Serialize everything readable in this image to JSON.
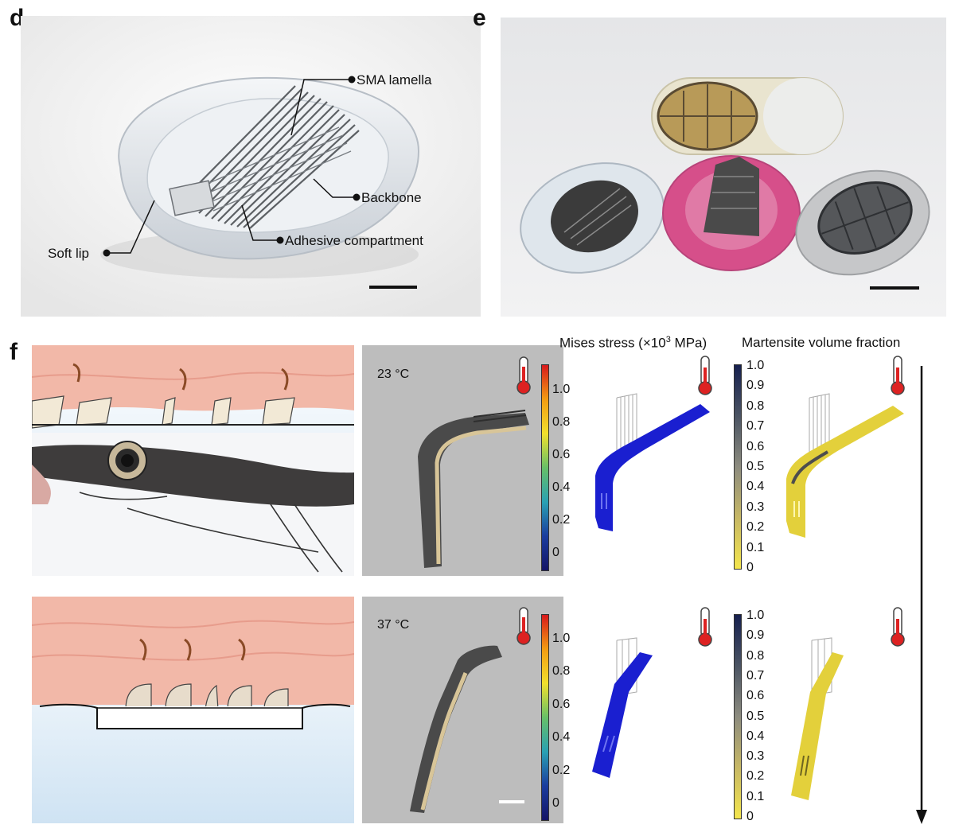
{
  "panels": {
    "d": {
      "letter": "d",
      "labels": {
        "sma_lamella": "SMA lamella",
        "backbone": "Backbone",
        "adhesive_compartment": "Adhesive compartment",
        "soft_lip": "Soft lip"
      }
    },
    "e": {
      "letter": "e"
    },
    "f": {
      "letter": "f",
      "temps": {
        "top": "23 °C",
        "bottom": "37 °C"
      },
      "columns": {
        "mises": "Mises stress (×10",
        "mises_sup": "3",
        "mises_unit": " MPa)",
        "martensite": "Martensite volume fraction"
      },
      "colorbars": {
        "stress_ticks": [
          "1.0",
          "0.8",
          "0.6",
          "0.4",
          "0.2",
          "0"
        ],
        "martensite_ticks": [
          "1.0",
          "0.9",
          "0.8",
          "0.7",
          "0.6",
          "0.5",
          "0.4",
          "0.3",
          "0.2",
          "0.1",
          "0"
        ]
      }
    }
  },
  "colors": {
    "stress_bar": [
      "#d7191c",
      "#f39c12",
      "#f2e02c",
      "#67c067",
      "#2aa1b3",
      "#1a3c9e",
      "#141466"
    ],
    "martensite_bar": [
      "#16204f",
      "#4b5463",
      "#8d8c7f",
      "#c7b865",
      "#f4e64d"
    ],
    "model_blue": "#1a1fd0",
    "model_yellow": "#e3d03b",
    "tissue": "#f2b8a8",
    "whale_dark": "#3e3c3c"
  }
}
